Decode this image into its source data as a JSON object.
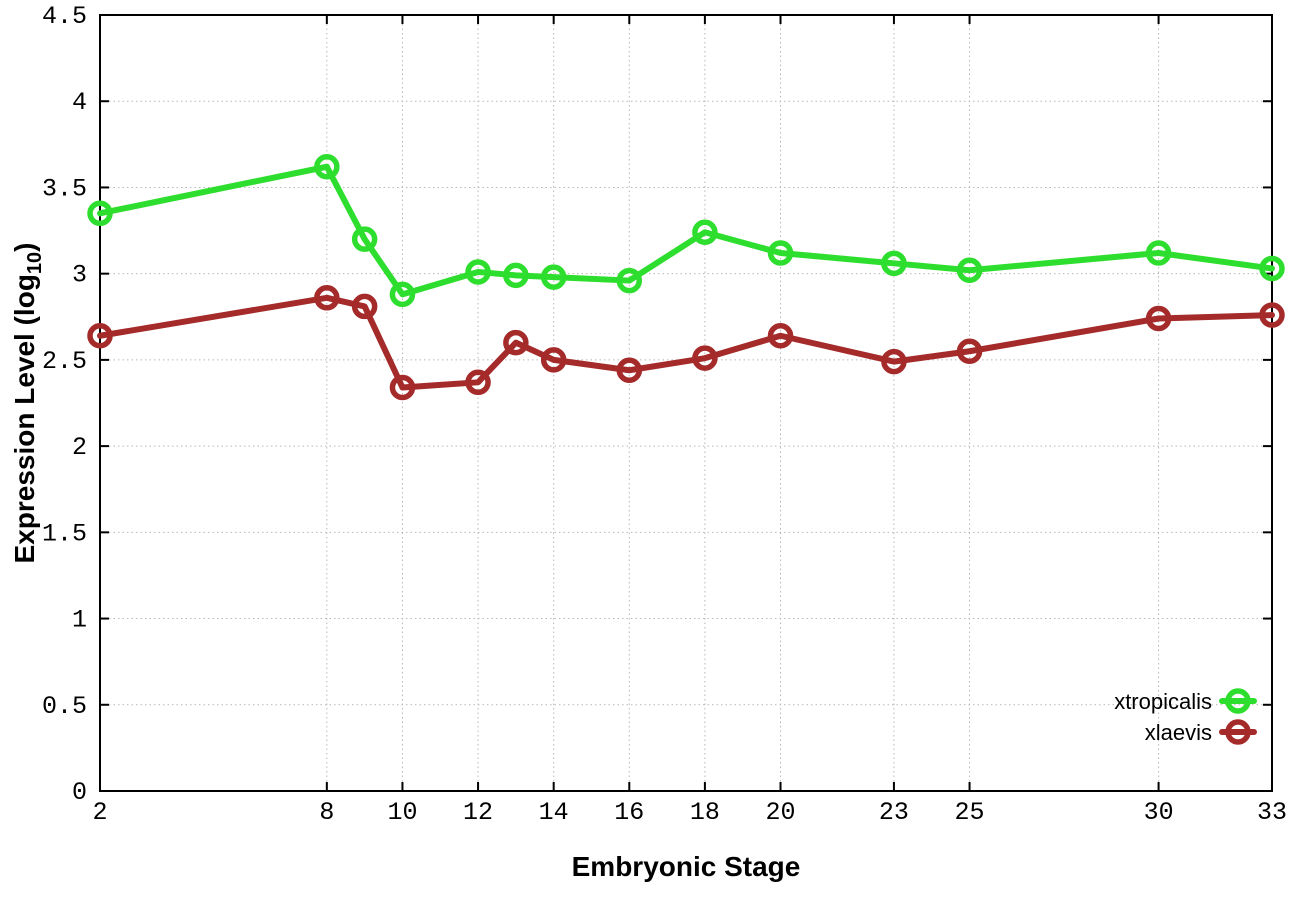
{
  "chart_data": {
    "type": "line",
    "title": "",
    "xlabel": "Embryonic Stage",
    "ylabel": {
      "prefix": "Expression Level (log",
      "subscript": "10",
      "suffix": ")",
      "full_text": "Expression Level (log10)"
    },
    "xlim": [
      2,
      33
    ],
    "ylim": [
      0,
      4.5
    ],
    "grid": true,
    "legend_position": "inside-bottom-right",
    "x": [
      2,
      8,
      9,
      10,
      12,
      13,
      14,
      16,
      18,
      20,
      23,
      25,
      30,
      33
    ],
    "xticks": [
      {
        "value": 2,
        "label": "2"
      },
      {
        "value": 8,
        "label": "8"
      },
      {
        "value": 10,
        "label": "10"
      },
      {
        "value": 12,
        "label": "12"
      },
      {
        "value": 14,
        "label": "14"
      },
      {
        "value": 16,
        "label": "16"
      },
      {
        "value": 18,
        "label": "18"
      },
      {
        "value": 20,
        "label": "20"
      },
      {
        "value": 23,
        "label": "23"
      },
      {
        "value": 25,
        "label": "25"
      },
      {
        "value": 30,
        "label": "30"
      },
      {
        "value": 33,
        "label": "33"
      }
    ],
    "yticks": [
      {
        "value": 0,
        "label": "0"
      },
      {
        "value": 0.5,
        "label": "0.5"
      },
      {
        "value": 1,
        "label": "1"
      },
      {
        "value": 1.5,
        "label": "1.5"
      },
      {
        "value": 2,
        "label": "2"
      },
      {
        "value": 2.5,
        "label": "2.5"
      },
      {
        "value": 3,
        "label": "3"
      },
      {
        "value": 3.5,
        "label": "3.5"
      },
      {
        "value": 4,
        "label": "4"
      },
      {
        "value": 4.5,
        "label": "4.5"
      }
    ],
    "series": [
      {
        "name": "xtropicalis",
        "color": "#2EDE2E",
        "marker": "open-circle",
        "values": [
          3.35,
          3.62,
          3.2,
          2.88,
          3.01,
          2.99,
          2.98,
          2.96,
          3.24,
          3.12,
          3.06,
          3.02,
          3.12,
          3.03
        ]
      },
      {
        "name": "xlaevis",
        "color": "#A52A2A",
        "marker": "open-circle",
        "values": [
          2.64,
          2.86,
          2.81,
          2.34,
          2.37,
          2.6,
          2.5,
          2.44,
          2.51,
          2.64,
          2.49,
          2.55,
          2.74,
          2.76
        ]
      }
    ]
  },
  "style_colors": {
    "border": "#000000",
    "gridline": "#b8b8b8",
    "text": "#000000",
    "background": "#ffffff"
  }
}
